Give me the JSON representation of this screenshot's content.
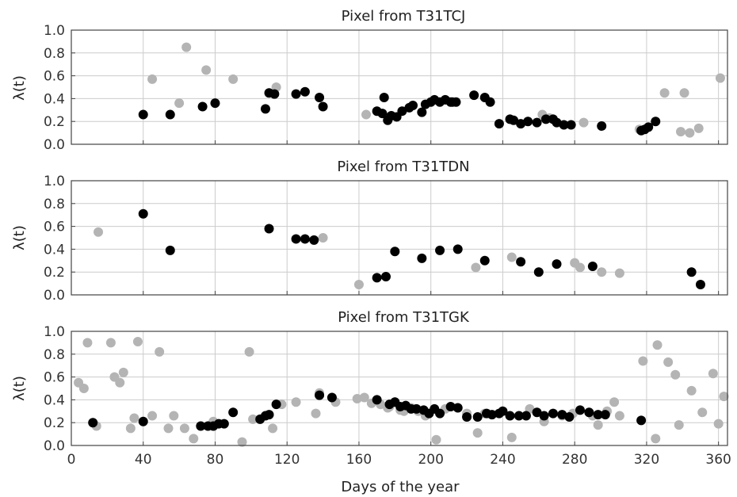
{
  "chart_data": {
    "type": "scatter",
    "xlabel": "Days of the year",
    "shared_x_axis": true,
    "grid": true,
    "colors": {
      "black": "#000000",
      "gray": "#b4b4b4",
      "grid": "#cccccc",
      "axis": "#444444"
    },
    "xlim": [
      0,
      365
    ],
    "xticks": [
      0,
      40,
      80,
      120,
      160,
      200,
      240,
      280,
      320,
      360
    ],
    "panels": [
      {
        "title": "Pixel from T31TCJ",
        "ylabel": "λ(t)",
        "ylim": [
          0,
          1
        ],
        "yticks": [
          0.0,
          0.2,
          0.4,
          0.6,
          0.8,
          1.0
        ],
        "series": [
          {
            "color": "gray",
            "x": [
              45,
              60,
              64,
              75,
              90,
              114,
              164,
              262,
              266,
              285,
              316,
              330,
              339,
              341,
              344,
              349,
              361
            ],
            "y": [
              0.57,
              0.36,
              0.85,
              0.65,
              0.57,
              0.5,
              0.26,
              0.26,
              0.23,
              0.19,
              0.13,
              0.45,
              0.11,
              0.45,
              0.1,
              0.14,
              0.58
            ]
          },
          {
            "color": "black",
            "x": [
              40,
              55,
              73,
              80,
              108,
              110,
              113,
              125,
              130,
              138,
              140,
              170,
              173,
              174,
              176,
              178,
              181,
              184,
              188,
              190,
              195,
              197,
              200,
              202,
              205,
              208,
              211,
              212,
              214,
              224,
              230,
              233,
              238,
              244,
              246,
              250,
              254,
              259,
              264,
              268,
              270,
              274,
              278,
              295,
              317,
              319,
              321,
              325
            ],
            "y": [
              0.26,
              0.26,
              0.33,
              0.36,
              0.31,
              0.45,
              0.44,
              0.44,
              0.46,
              0.41,
              0.33,
              0.29,
              0.27,
              0.41,
              0.21,
              0.25,
              0.24,
              0.29,
              0.32,
              0.34,
              0.28,
              0.35,
              0.37,
              0.39,
              0.37,
              0.39,
              0.37,
              0.37,
              0.37,
              0.43,
              0.41,
              0.37,
              0.18,
              0.22,
              0.21,
              0.18,
              0.2,
              0.19,
              0.22,
              0.22,
              0.19,
              0.17,
              0.17,
              0.16,
              0.12,
              0.13,
              0.15,
              0.2
            ]
          }
        ]
      },
      {
        "title": "Pixel from T31TDN",
        "ylabel": "λ(t)",
        "ylim": [
          0,
          1
        ],
        "yticks": [
          0.0,
          0.2,
          0.4,
          0.6,
          0.8,
          1.0
        ],
        "series": [
          {
            "color": "gray",
            "x": [
              15,
              140,
              160,
              225,
              245,
              280,
              283,
              295,
              305
            ],
            "y": [
              0.55,
              0.5,
              0.09,
              0.24,
              0.33,
              0.28,
              0.24,
              0.2,
              0.19
            ]
          },
          {
            "color": "black",
            "x": [
              40,
              55,
              110,
              125,
              130,
              135,
              170,
              175,
              180,
              195,
              205,
              215,
              230,
              250,
              260,
              270,
              290,
              345,
              350
            ],
            "y": [
              0.71,
              0.39,
              0.58,
              0.49,
              0.49,
              0.48,
              0.15,
              0.16,
              0.38,
              0.32,
              0.39,
              0.4,
              0.3,
              0.29,
              0.2,
              0.27,
              0.25,
              0.2,
              0.09
            ]
          }
        ]
      },
      {
        "title": "Pixel from T31TGK",
        "ylabel": "λ(t)",
        "ylim": [
          0,
          1
        ],
        "yticks": [
          0.0,
          0.2,
          0.4,
          0.6,
          0.8,
          1.0
        ],
        "series": [
          {
            "color": "gray",
            "x": [
              4,
              7,
              9,
              14,
              22,
              24,
              27,
              29,
              33,
              35,
              37,
              45,
              49,
              54,
              57,
              63,
              68,
              79,
              95,
              99,
              101,
              112,
              117,
              125,
              136,
              138,
              147,
              159,
              163,
              167,
              172,
              176,
              177,
              180,
              183,
              185,
              189,
              193,
              197,
              203,
              208,
              220,
              226,
              230,
              245,
              255,
              263,
              273,
              279,
              290,
              293,
              298,
              302,
              305,
              318,
              325,
              326,
              332,
              336,
              338,
              345,
              351,
              357,
              360,
              363
            ],
            "y": [
              0.55,
              0.5,
              0.9,
              0.17,
              0.9,
              0.6,
              0.55,
              0.64,
              0.15,
              0.24,
              0.91,
              0.26,
              0.82,
              0.15,
              0.26,
              0.15,
              0.06,
              0.21,
              0.03,
              0.82,
              0.23,
              0.15,
              0.36,
              0.38,
              0.28,
              0.46,
              0.38,
              0.41,
              0.42,
              0.37,
              0.36,
              0.33,
              0.34,
              0.38,
              0.31,
              0.3,
              0.33,
              0.3,
              0.26,
              0.05,
              0.32,
              0.28,
              0.11,
              0.28,
              0.07,
              0.32,
              0.21,
              0.26,
              0.28,
              0.26,
              0.18,
              0.3,
              0.38,
              0.26,
              0.74,
              0.06,
              0.88,
              0.73,
              0.62,
              0.18,
              0.48,
              0.29,
              0.63,
              0.19,
              0.43
            ]
          },
          {
            "color": "black",
            "x": [
              12,
              40,
              72,
              76,
              79,
              82,
              85,
              90,
              105,
              108,
              110,
              114,
              138,
              145,
              170,
              177,
              180,
              183,
              186,
              189,
              192,
              196,
              199,
              202,
              205,
              211,
              215,
              220,
              226,
              231,
              234,
              238,
              240,
              244,
              249,
              253,
              259,
              263,
              268,
              273,
              277,
              283,
              288,
              293,
              297,
              317
            ],
            "y": [
              0.2,
              0.21,
              0.17,
              0.17,
              0.17,
              0.19,
              0.19,
              0.29,
              0.23,
              0.26,
              0.27,
              0.36,
              0.44,
              0.42,
              0.4,
              0.36,
              0.38,
              0.34,
              0.35,
              0.32,
              0.32,
              0.31,
              0.28,
              0.32,
              0.28,
              0.34,
              0.33,
              0.25,
              0.25,
              0.28,
              0.27,
              0.28,
              0.3,
              0.26,
              0.26,
              0.26,
              0.29,
              0.26,
              0.28,
              0.27,
              0.25,
              0.31,
              0.29,
              0.27,
              0.27,
              0.22
            ]
          }
        ]
      }
    ]
  }
}
